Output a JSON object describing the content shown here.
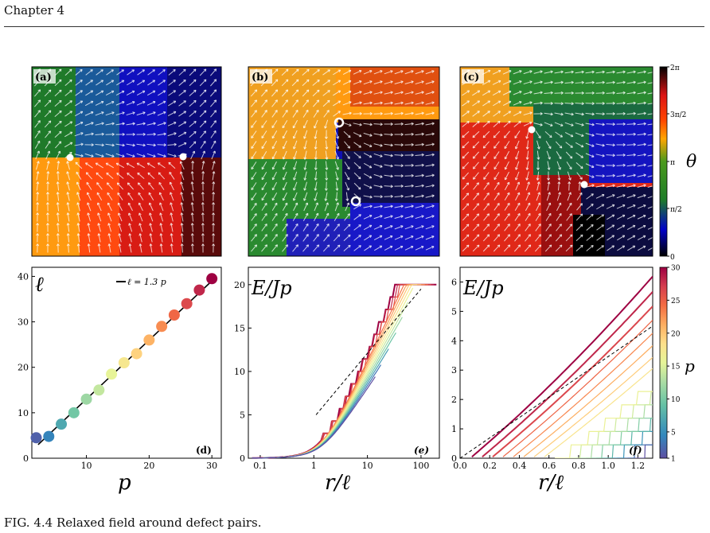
{
  "header": {
    "chapter": "Chapter 4"
  },
  "caption": {
    "text": "FIG. 4.4 Relaxed field around defect pairs."
  },
  "panels": {
    "a": {
      "label": "(a)"
    },
    "b": {
      "label": "(b)"
    },
    "c": {
      "label": "(c)"
    },
    "d": {
      "label": "(d)"
    },
    "e": {
      "label": "(e)"
    },
    "f": {
      "label": "(f)"
    }
  },
  "colorbar_theta": {
    "label": "θ",
    "ticks": [
      {
        "value": 0,
        "label": "0"
      },
      {
        "value": 1.5708,
        "label": "π/2"
      },
      {
        "value": 3.1416,
        "label": "π"
      },
      {
        "value": 4.7124,
        "label": "3π/2"
      },
      {
        "value": 6.2832,
        "label": "2π"
      }
    ],
    "colors": [
      "#000000",
      "#0000c8",
      "#1e7d28",
      "#4a9a1c",
      "#ffa500",
      "#ff4500",
      "#dc1414",
      "#000000"
    ]
  },
  "colorbar_p": {
    "label": "p",
    "range": [
      1,
      30
    ],
    "ticks": [
      "1",
      "5",
      "10",
      "15",
      "20",
      "25",
      "30"
    ],
    "colors": [
      "#5e4fa2",
      "#3288bd",
      "#66c2a5",
      "#abdda4",
      "#e6f598",
      "#fee08b",
      "#fdae61",
      "#f46d43",
      "#d53e4f",
      "#9e0142"
    ]
  },
  "chart_data": [
    {
      "panel": "d",
      "type": "scatter",
      "x": [
        2,
        4,
        6,
        8,
        10,
        12,
        14,
        16,
        18,
        20,
        22,
        24,
        26,
        28,
        30
      ],
      "y": [
        4.5,
        4.8,
        7.5,
        10,
        13,
        15,
        18.5,
        21,
        23,
        26,
        29,
        31.5,
        34,
        37,
        39.5
      ],
      "xlabel": "p",
      "ylabel": "ℓ",
      "xlim": [
        1.3,
        31.5
      ],
      "ylim": [
        0,
        42
      ],
      "xticks": [
        "10",
        "20",
        "30"
      ],
      "yticks": [
        "0",
        "10",
        "20",
        "30",
        "40"
      ],
      "fit_line": {
        "legend": "ℓ = 1.3 p",
        "slope": 1.3,
        "x": [
          2.3,
          30
        ]
      }
    },
    {
      "panel": "e",
      "type": "line",
      "xscale": "log",
      "xlabel": "r/ℓ",
      "ylabel": "E/Jp",
      "xlim": [
        0.06,
        220
      ],
      "ylim": [
        0,
        22
      ],
      "xticks": [
        "0.1",
        "1",
        "10",
        "100"
      ],
      "yticks": [
        "0",
        "5",
        "10",
        "15",
        "20"
      ],
      "reference_line": {
        "style": "dashed",
        "x": [
          1.1,
          100
        ],
        "y": [
          5,
          19.5
        ]
      }
    },
    {
      "panel": "f",
      "type": "line",
      "xlabel": "r/ℓ",
      "ylabel": "E/Jp",
      "xlim": [
        0,
        1.3
      ],
      "ylim": [
        0,
        6.5
      ],
      "xticks": [
        "0.0",
        "0.2",
        "0.4",
        "0.6",
        "0.8",
        "1.0",
        "1.2"
      ],
      "yticks": [
        "0",
        "1",
        "2",
        "3",
        "4",
        "5",
        "6"
      ],
      "reference_line": {
        "style": "dashed",
        "x": [
          0,
          1.3
        ],
        "y": [
          0,
          4.5
        ]
      }
    }
  ]
}
